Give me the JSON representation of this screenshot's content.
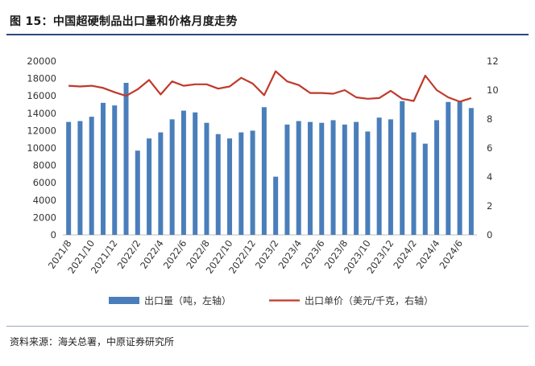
{
  "title": "图 15：中国超硬制品出口量和价格月度走势",
  "source": "资料来源：海关总署，中原证券研究所",
  "chart_data": {
    "type": "bar+line",
    "categories": [
      "2021/8",
      "2021/9",
      "2021/10",
      "2021/11",
      "2021/12",
      "2022/1",
      "2022/2",
      "2022/3",
      "2022/4",
      "2022/5",
      "2022/6",
      "2022/7",
      "2022/8",
      "2022/9",
      "2022/10",
      "2022/11",
      "2022/12",
      "2023/1",
      "2023/2",
      "2023/3",
      "2023/4",
      "2023/5",
      "2023/6",
      "2023/7",
      "2023/8",
      "2023/9",
      "2023/10",
      "2023/11",
      "2023/12",
      "2024/1",
      "2024/2",
      "2024/3",
      "2024/4",
      "2024/5",
      "2024/6",
      "2024/7"
    ],
    "x_tick_labels": [
      "2021/8",
      "2021/10",
      "2021/12",
      "2022/2",
      "2022/4",
      "2022/6",
      "2022/8",
      "2022/10",
      "2022/12",
      "2023/2",
      "2023/4",
      "2023/6",
      "2023/8",
      "2023/10",
      "2023/12",
      "2024/2",
      "2024/4",
      "2024/6"
    ],
    "series": [
      {
        "name": "出口量（吨，左轴）",
        "type": "bar",
        "axis": "left",
        "color": "#4a7ebb",
        "values": [
          13000,
          13100,
          13600,
          15200,
          14900,
          17500,
          9700,
          11100,
          11800,
          13300,
          14300,
          14100,
          12900,
          11600,
          11100,
          11800,
          12000,
          14700,
          6700,
          12700,
          13100,
          13000,
          12900,
          13200,
          12700,
          13000,
          11900,
          13500,
          13300,
          15400,
          11800,
          10500,
          13200,
          15300,
          15300,
          14600
        ]
      },
      {
        "name": "出口单价（美元/千克，右轴）",
        "type": "line",
        "axis": "right",
        "color": "#c0392b",
        "values": [
          10.3,
          10.25,
          10.3,
          10.15,
          9.85,
          9.6,
          10.05,
          10.7,
          9.7,
          10.6,
          10.3,
          10.4,
          10.4,
          10.1,
          10.25,
          10.85,
          10.45,
          9.65,
          11.3,
          10.6,
          10.35,
          9.8,
          9.8,
          9.75,
          10.0,
          9.5,
          9.4,
          9.45,
          9.95,
          9.4,
          9.25,
          11.0,
          10.0,
          9.5,
          9.2,
          9.45
        ]
      }
    ],
    "y_left": {
      "min": 0,
      "max": 20000,
      "ticks": [
        0,
        2000,
        4000,
        6000,
        8000,
        10000,
        12000,
        14000,
        16000,
        18000,
        20000
      ]
    },
    "y_right": {
      "min": 0,
      "max": 12,
      "ticks": [
        0,
        2,
        4,
        6,
        8,
        10,
        12
      ]
    },
    "grid": false,
    "legend_position": "bottom"
  }
}
